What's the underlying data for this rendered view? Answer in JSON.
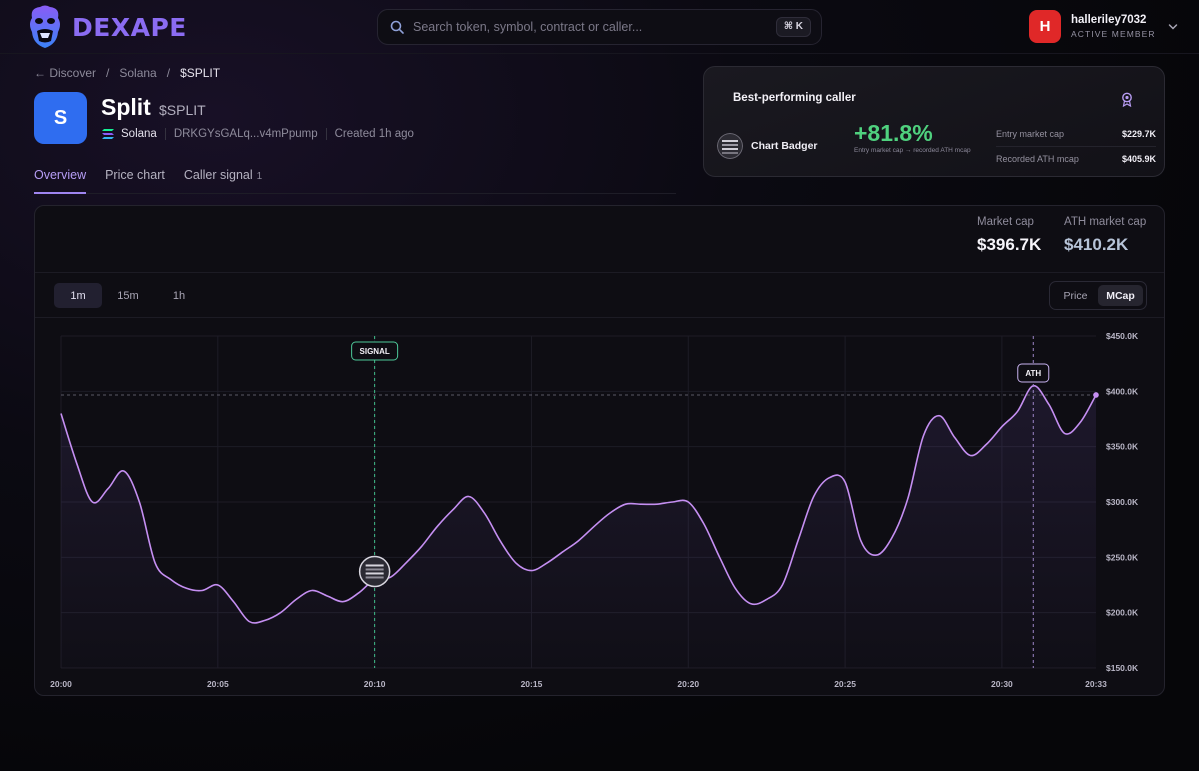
{
  "brand": {
    "name": "DEXAPE"
  },
  "search": {
    "placeholder": "Search token, symbol, contract or caller...",
    "shortcut": "⌘ K"
  },
  "user": {
    "initial": "H",
    "name": "halleriley7032",
    "role": "ACTIVE MEMBER"
  },
  "breadcrumb": {
    "back": "← Discover",
    "sep": "/",
    "chain": "Solana",
    "current": "$SPLIT"
  },
  "token": {
    "logo_letter": "S",
    "name": "Split",
    "symbol": "$SPLIT",
    "chain": "Solana",
    "contract": "DRKGYsGALq...v4mPpump",
    "created": "Created 1h ago"
  },
  "tabs": [
    {
      "label": "Overview",
      "active": true
    },
    {
      "label": "Price chart",
      "active": false
    },
    {
      "label": "Caller signal",
      "count": "1",
      "active": false
    }
  ],
  "best_caller": {
    "title": "Best-performing caller",
    "caller_name": "Chart Badger",
    "gain": "+81.8%",
    "gain_caption": "Entry market cap → recorded ATH mcap",
    "entry_label": "Entry market cap",
    "entry_value": "$229.7K",
    "ath_label": "Recorded ATH mcap",
    "ath_value": "$405.9K"
  },
  "stats": {
    "market_cap_label": "Market cap",
    "market_cap_value": "$396.7K",
    "ath_label": "ATH market cap",
    "ath_value": "$410.2K"
  },
  "timeframes": [
    {
      "label": "1m",
      "active": true
    },
    {
      "label": "15m",
      "active": false
    },
    {
      "label": "1h",
      "active": false
    }
  ],
  "mode_toggle": {
    "price": "Price",
    "mcap": "MCap",
    "active": "MCap"
  },
  "colors": {
    "accent": "#b98cf0",
    "gain": "#4fd17e",
    "signal": "#3fbf8a",
    "brand": "#8b6cf2"
  },
  "chart_data": {
    "type": "area",
    "y_unit": "market cap (USD)",
    "ylim": [
      150000,
      450000
    ],
    "y_ticks": [
      "$450.0K",
      "$400.0K",
      "$350.0K",
      "$300.0K",
      "$250.0K",
      "$200.0K",
      "$150.0K"
    ],
    "y_tick_values": [
      450000,
      400000,
      350000,
      300000,
      250000,
      200000,
      150000
    ],
    "x_ticks": [
      "20:00",
      "20:05",
      "20:10",
      "20:15",
      "20:20",
      "20:25",
      "20:30",
      "20:33"
    ],
    "x_tick_values": [
      0,
      5,
      10,
      15,
      20,
      25,
      30,
      33
    ],
    "x_domain": [
      0,
      33
    ],
    "series": [
      {
        "x": [
          0,
          0.5,
          1,
          1.5,
          2,
          2.5,
          3,
          3.5,
          4,
          4.5,
          5,
          5.5,
          6,
          6.5,
          7,
          7.5,
          8,
          8.5,
          9,
          9.5,
          10,
          10.5,
          11,
          11.5,
          12,
          12.5,
          13,
          13.5,
          14,
          14.5,
          15,
          15.5,
          16,
          16.5,
          17,
          17.5,
          18,
          18.5,
          19,
          19.5,
          20,
          20.5,
          21,
          21.5,
          22,
          22.5,
          23,
          23.5,
          24,
          24.5,
          25,
          25.5,
          26,
          26.5,
          27,
          27.5,
          28,
          28.5,
          29,
          29.5,
          30,
          30.5,
          31,
          31.5,
          32,
          32.5,
          33
        ],
        "values": [
          380000,
          335000,
          300000,
          312000,
          328000,
          300000,
          245000,
          230000,
          222000,
          220000,
          225000,
          210000,
          192000,
          193000,
          200000,
          212000,
          220000,
          215000,
          210000,
          218000,
          230000,
          232000,
          245000,
          260000,
          278000,
          293000,
          305000,
          290000,
          265000,
          245000,
          238000,
          245000,
          255000,
          265000,
          278000,
          290000,
          298000,
          298000,
          298000,
          300000,
          300000,
          280000,
          250000,
          222000,
          208000,
          212000,
          225000,
          265000,
          305000,
          322000,
          318000,
          265000,
          252000,
          268000,
          303000,
          360000,
          378000,
          358000,
          342000,
          352000,
          368000,
          382000,
          405000,
          388000,
          362000,
          372000,
          396700
        ]
      }
    ],
    "markers": [
      {
        "label": "SIGNAL",
        "x": 10
      },
      {
        "label": "ATH",
        "x": 31
      }
    ],
    "current_value_line": 396700,
    "grid": true
  }
}
